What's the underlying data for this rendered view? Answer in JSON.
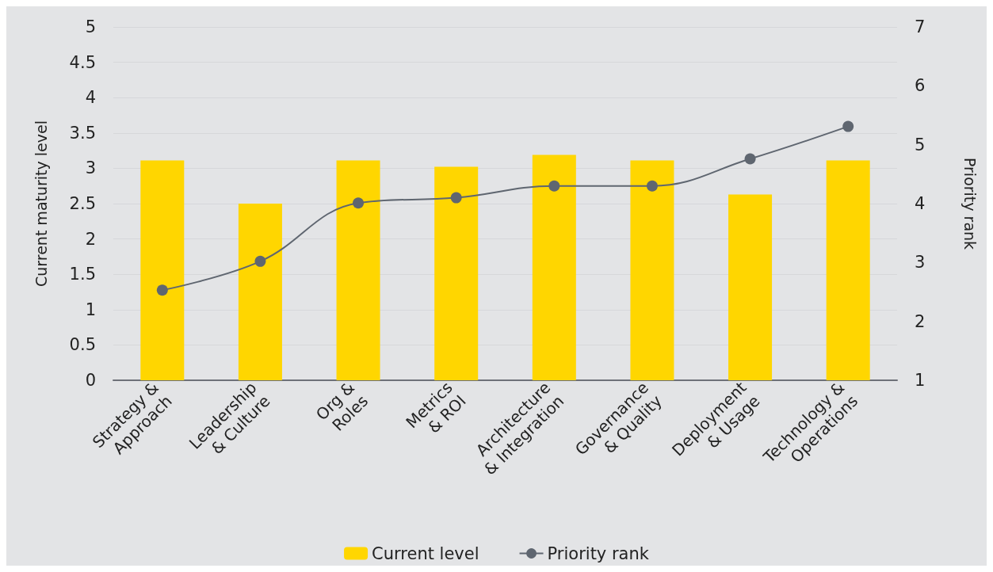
{
  "chart_data": {
    "type": "bar",
    "ylabel": "Current maturity level",
    "y2label": "Priority rank",
    "categories": [
      "Strategy &\nApproach",
      "Leadership\n& Culture",
      "Org &\nRoles",
      "Metrics\n& ROI",
      "Architecture\n& Integration",
      "Governance\n& Quality",
      "Deployment\n& Usage",
      "Technology &\nOperations"
    ],
    "series": [
      {
        "name": "Current level",
        "color": "#ffd600",
        "values": [
          3.11,
          2.5,
          3.11,
          3.02,
          3.19,
          3.11,
          2.63,
          3.11
        ]
      },
      {
        "name": "Priority rank",
        "type": "line",
        "axis": "y2",
        "color": "#5f6670",
        "marker": "circle",
        "values": [
          2.53,
          3.02,
          4.01,
          4.1,
          4.3,
          4.3,
          4.76,
          5.31
        ]
      }
    ],
    "ylim": [
      0,
      5
    ],
    "yticks": [
      0,
      0.5,
      1,
      1.5,
      2,
      2.5,
      3,
      3.5,
      4,
      4.5,
      5
    ],
    "y2lim": [
      1,
      7
    ],
    "y2ticks": [
      1,
      2,
      3,
      4,
      5,
      6,
      7
    ],
    "grid": "y",
    "legend": "bottom"
  }
}
